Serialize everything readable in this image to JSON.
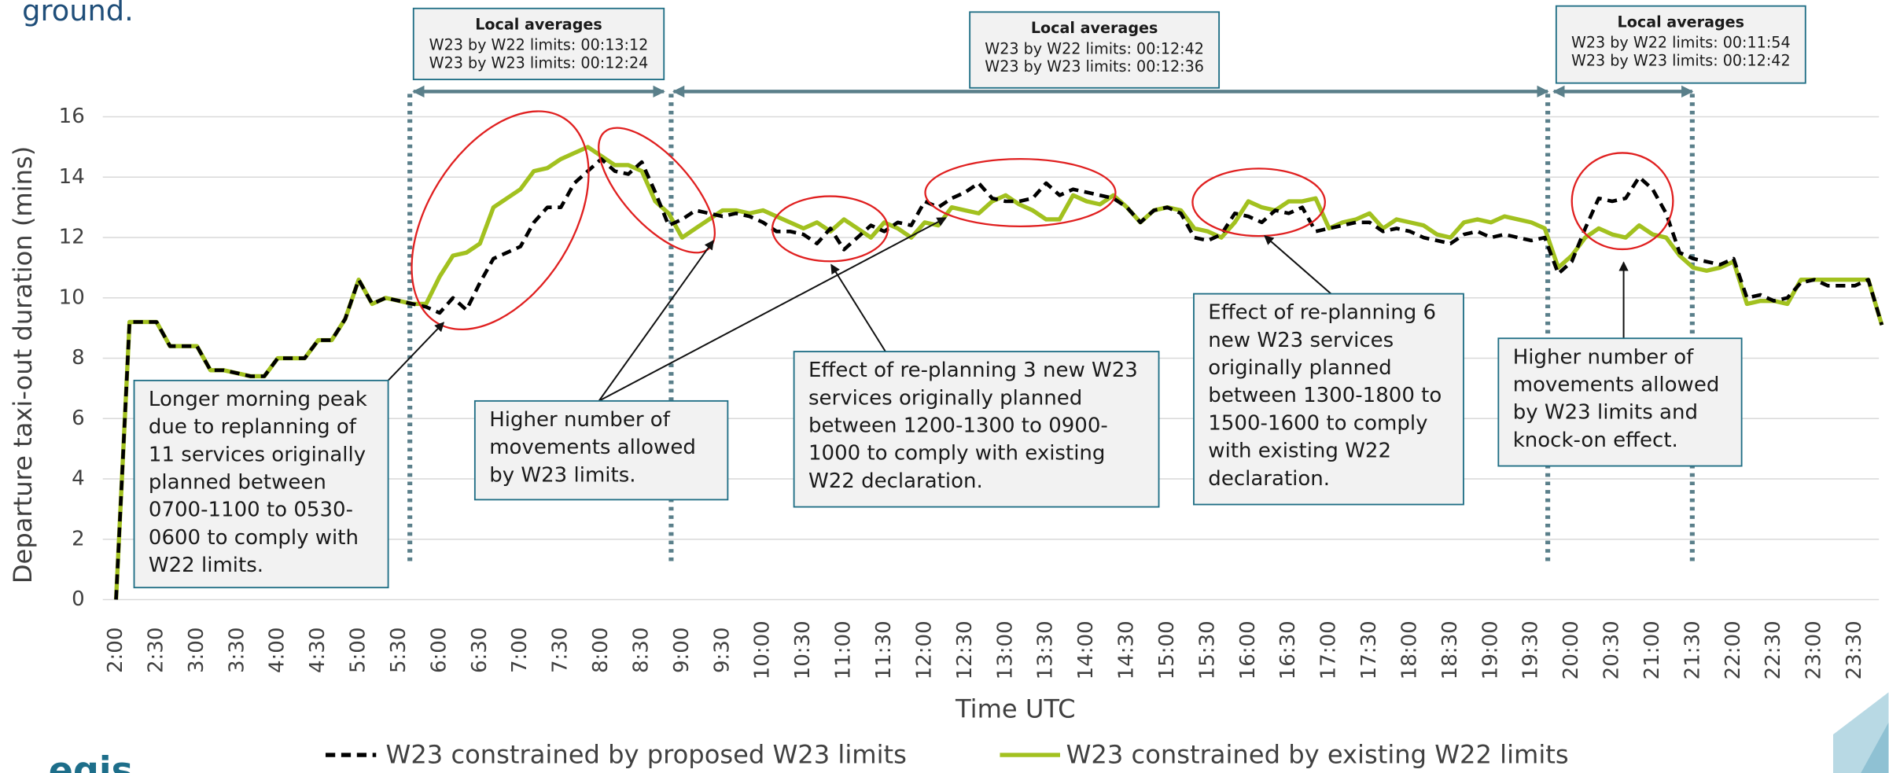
{
  "chart_data": {
    "type": "line",
    "title": "ground.",
    "x_label": "Time UTC",
    "y_label": "Departure taxi-out duration (mins)",
    "logo": "egis",
    "categories": [
      "2:00",
      null,
      null,
      "2:30",
      null,
      null,
      "3:00",
      null,
      null,
      "3:30",
      null,
      null,
      "4:00",
      null,
      null,
      "4:30",
      null,
      null,
      "5:00",
      null,
      null,
      "5:30",
      null,
      null,
      "6:00",
      null,
      null,
      "6:30",
      null,
      null,
      "7:00",
      null,
      null,
      "7:30",
      null,
      null,
      "8:00",
      null,
      null,
      "8:30",
      null,
      null,
      "9:00",
      null,
      null,
      "9:30",
      null,
      null,
      "10:00",
      null,
      null,
      "10:30",
      null,
      null,
      "11:00",
      null,
      null,
      "11:30",
      null,
      null,
      "12:00",
      null,
      null,
      "12:30",
      null,
      null,
      "13:00",
      null,
      null,
      "13:30",
      null,
      null,
      "14:00",
      null,
      null,
      "14:30",
      null,
      null,
      "15:00",
      null,
      null,
      "15:30",
      null,
      null,
      "16:00",
      null,
      null,
      "16:30",
      null,
      null,
      "17:00",
      null,
      null,
      "17:30",
      null,
      null,
      "18:00",
      null,
      null,
      "18:30",
      null,
      null,
      "19:00",
      null,
      null,
      "19:30",
      null,
      null,
      "20:00",
      null,
      null,
      "20:30",
      null,
      null,
      "21:00",
      null,
      null,
      "21:30",
      null,
      null,
      "22:00",
      null,
      null,
      "22:30",
      null,
      null,
      "23:00",
      null,
      null,
      "23:30",
      null,
      null
    ],
    "series": [
      {
        "name": "W23 constrained by proposed W23 limits",
        "color": "#000000",
        "dashed": true,
        "values": [
          0,
          9.2,
          9.2,
          9.2,
          8.4,
          8.4,
          8.4,
          7.6,
          7.6,
          7.5,
          7.4,
          7.4,
          8.0,
          8.0,
          8.0,
          8.6,
          8.6,
          9.3,
          10.6,
          9.8,
          10.0,
          9.9,
          9.8,
          9.7,
          9.5,
          10.0,
          9.6,
          10.5,
          11.3,
          11.5,
          11.7,
          12.5,
          13.0,
          13.0,
          13.8,
          14.2,
          14.6,
          14.2,
          14.1,
          14.5,
          13.5,
          12.4,
          12.6,
          12.9,
          12.8,
          12.7,
          12.8,
          12.7,
          12.5,
          12.2,
          12.2,
          12.1,
          11.8,
          12.3,
          11.6,
          12.0,
          12.4,
          12.2,
          12.5,
          12.4,
          13.2,
          13.0,
          13.3,
          13.5,
          13.8,
          13.3,
          13.2,
          13.2,
          13.3,
          13.8,
          13.4,
          13.6,
          13.5,
          13.4,
          13.3,
          13.0,
          12.5,
          12.9,
          13.0,
          12.8,
          12.0,
          11.9,
          12.1,
          12.8,
          12.7,
          12.5,
          12.9,
          12.8,
          13.0,
          12.2,
          12.3,
          12.4,
          12.5,
          12.5,
          12.2,
          12.3,
          12.2,
          12.0,
          11.9,
          11.8,
          12.1,
          12.2,
          12.0,
          12.1,
          12.0,
          11.9,
          12.0,
          10.8,
          11.2,
          12.3,
          13.3,
          13.2,
          13.3,
          14.0,
          13.6,
          12.8,
          11.5,
          11.3,
          11.2,
          11.1,
          11.3,
          10.0,
          10.1,
          9.9,
          10.0,
          10.5,
          10.6,
          10.4,
          10.4,
          10.4,
          10.6,
          9.1
        ]
      },
      {
        "name": "W23 constrained by existing W22 limits",
        "color": "#a2c11f",
        "dashed": false,
        "values": [
          0,
          9.2,
          9.2,
          9.2,
          8.4,
          8.4,
          8.4,
          7.6,
          7.6,
          7.5,
          7.4,
          7.4,
          8.0,
          8.0,
          8.0,
          8.6,
          8.6,
          9.3,
          10.6,
          9.8,
          10.0,
          9.9,
          9.8,
          9.8,
          10.7,
          11.4,
          11.5,
          11.8,
          13.0,
          13.3,
          13.6,
          14.2,
          14.3,
          14.6,
          14.8,
          15.0,
          14.7,
          14.4,
          14.4,
          14.2,
          13.2,
          12.8,
          12.0,
          12.3,
          12.6,
          12.9,
          12.9,
          12.8,
          12.9,
          12.7,
          12.5,
          12.3,
          12.5,
          12.2,
          12.6,
          12.3,
          12.0,
          12.5,
          12.3,
          12.0,
          12.5,
          12.4,
          13.0,
          12.9,
          12.8,
          13.2,
          13.4,
          13.1,
          12.9,
          12.6,
          12.6,
          13.4,
          13.2,
          13.1,
          13.4,
          13.0,
          12.5,
          12.9,
          13.0,
          12.9,
          12.3,
          12.2,
          12.0,
          12.5,
          13.2,
          13.0,
          12.9,
          13.2,
          13.2,
          13.3,
          12.3,
          12.5,
          12.6,
          12.8,
          12.3,
          12.6,
          12.5,
          12.4,
          12.1,
          12.0,
          12.5,
          12.6,
          12.5,
          12.7,
          12.6,
          12.5,
          12.3,
          11.0,
          11.4,
          12.0,
          12.3,
          12.1,
          12.0,
          12.4,
          12.1,
          12.0,
          11.4,
          11.0,
          10.9,
          11.0,
          11.2,
          9.8,
          9.9,
          9.9,
          9.8,
          10.6,
          10.6,
          10.6,
          10.6,
          10.6,
          10.6,
          9.1
        ]
      }
    ],
    "ylim": [
      0,
      16
    ],
    "yticks": [
      0,
      2,
      4,
      6,
      8,
      10,
      12,
      14,
      16
    ],
    "grid": true,
    "local_averages": [
      {
        "title": "Local averages",
        "lines": [
          "W23 by W22 limits: 00:13:12",
          "W23 by W23 limits: 00:12:24"
        ]
      },
      {
        "title": "Local averages",
        "lines": [
          "W23 by W22 limits: 00:12:42",
          "W23 by W23 limits: 00:12:36"
        ]
      },
      {
        "title": "Local averages",
        "lines": [
          "W23 by W22 limits: 00:11:54",
          "W23 by W23 limits: 00:12:42"
        ]
      }
    ],
    "annotations": [
      {
        "lines": [
          "Longer morning peak",
          "due to replanning of",
          "11 services originally",
          "planned between",
          "0700-1100 to 0530-",
          "0600 to comply with",
          "W22 limits."
        ]
      },
      {
        "lines": [
          "Higher number of",
          "movements allowed",
          "by W23 limits."
        ]
      },
      {
        "lines": [
          "Effect of re-planning 3 new W23",
          "services originally planned",
          "between 1200-1300 to 0900-",
          "1000 to comply with existing",
          "W22 declaration."
        ]
      },
      {
        "lines": [
          "Effect of re-planning 6",
          "new W23 services",
          "originally planned",
          "between 1300-1800 to",
          "1500-1600 to comply",
          "with existing W22",
          "declaration."
        ]
      },
      {
        "lines": [
          "Higher number of",
          "movements allowed",
          "by W23 limits and",
          "knock-on effect."
        ]
      }
    ]
  }
}
